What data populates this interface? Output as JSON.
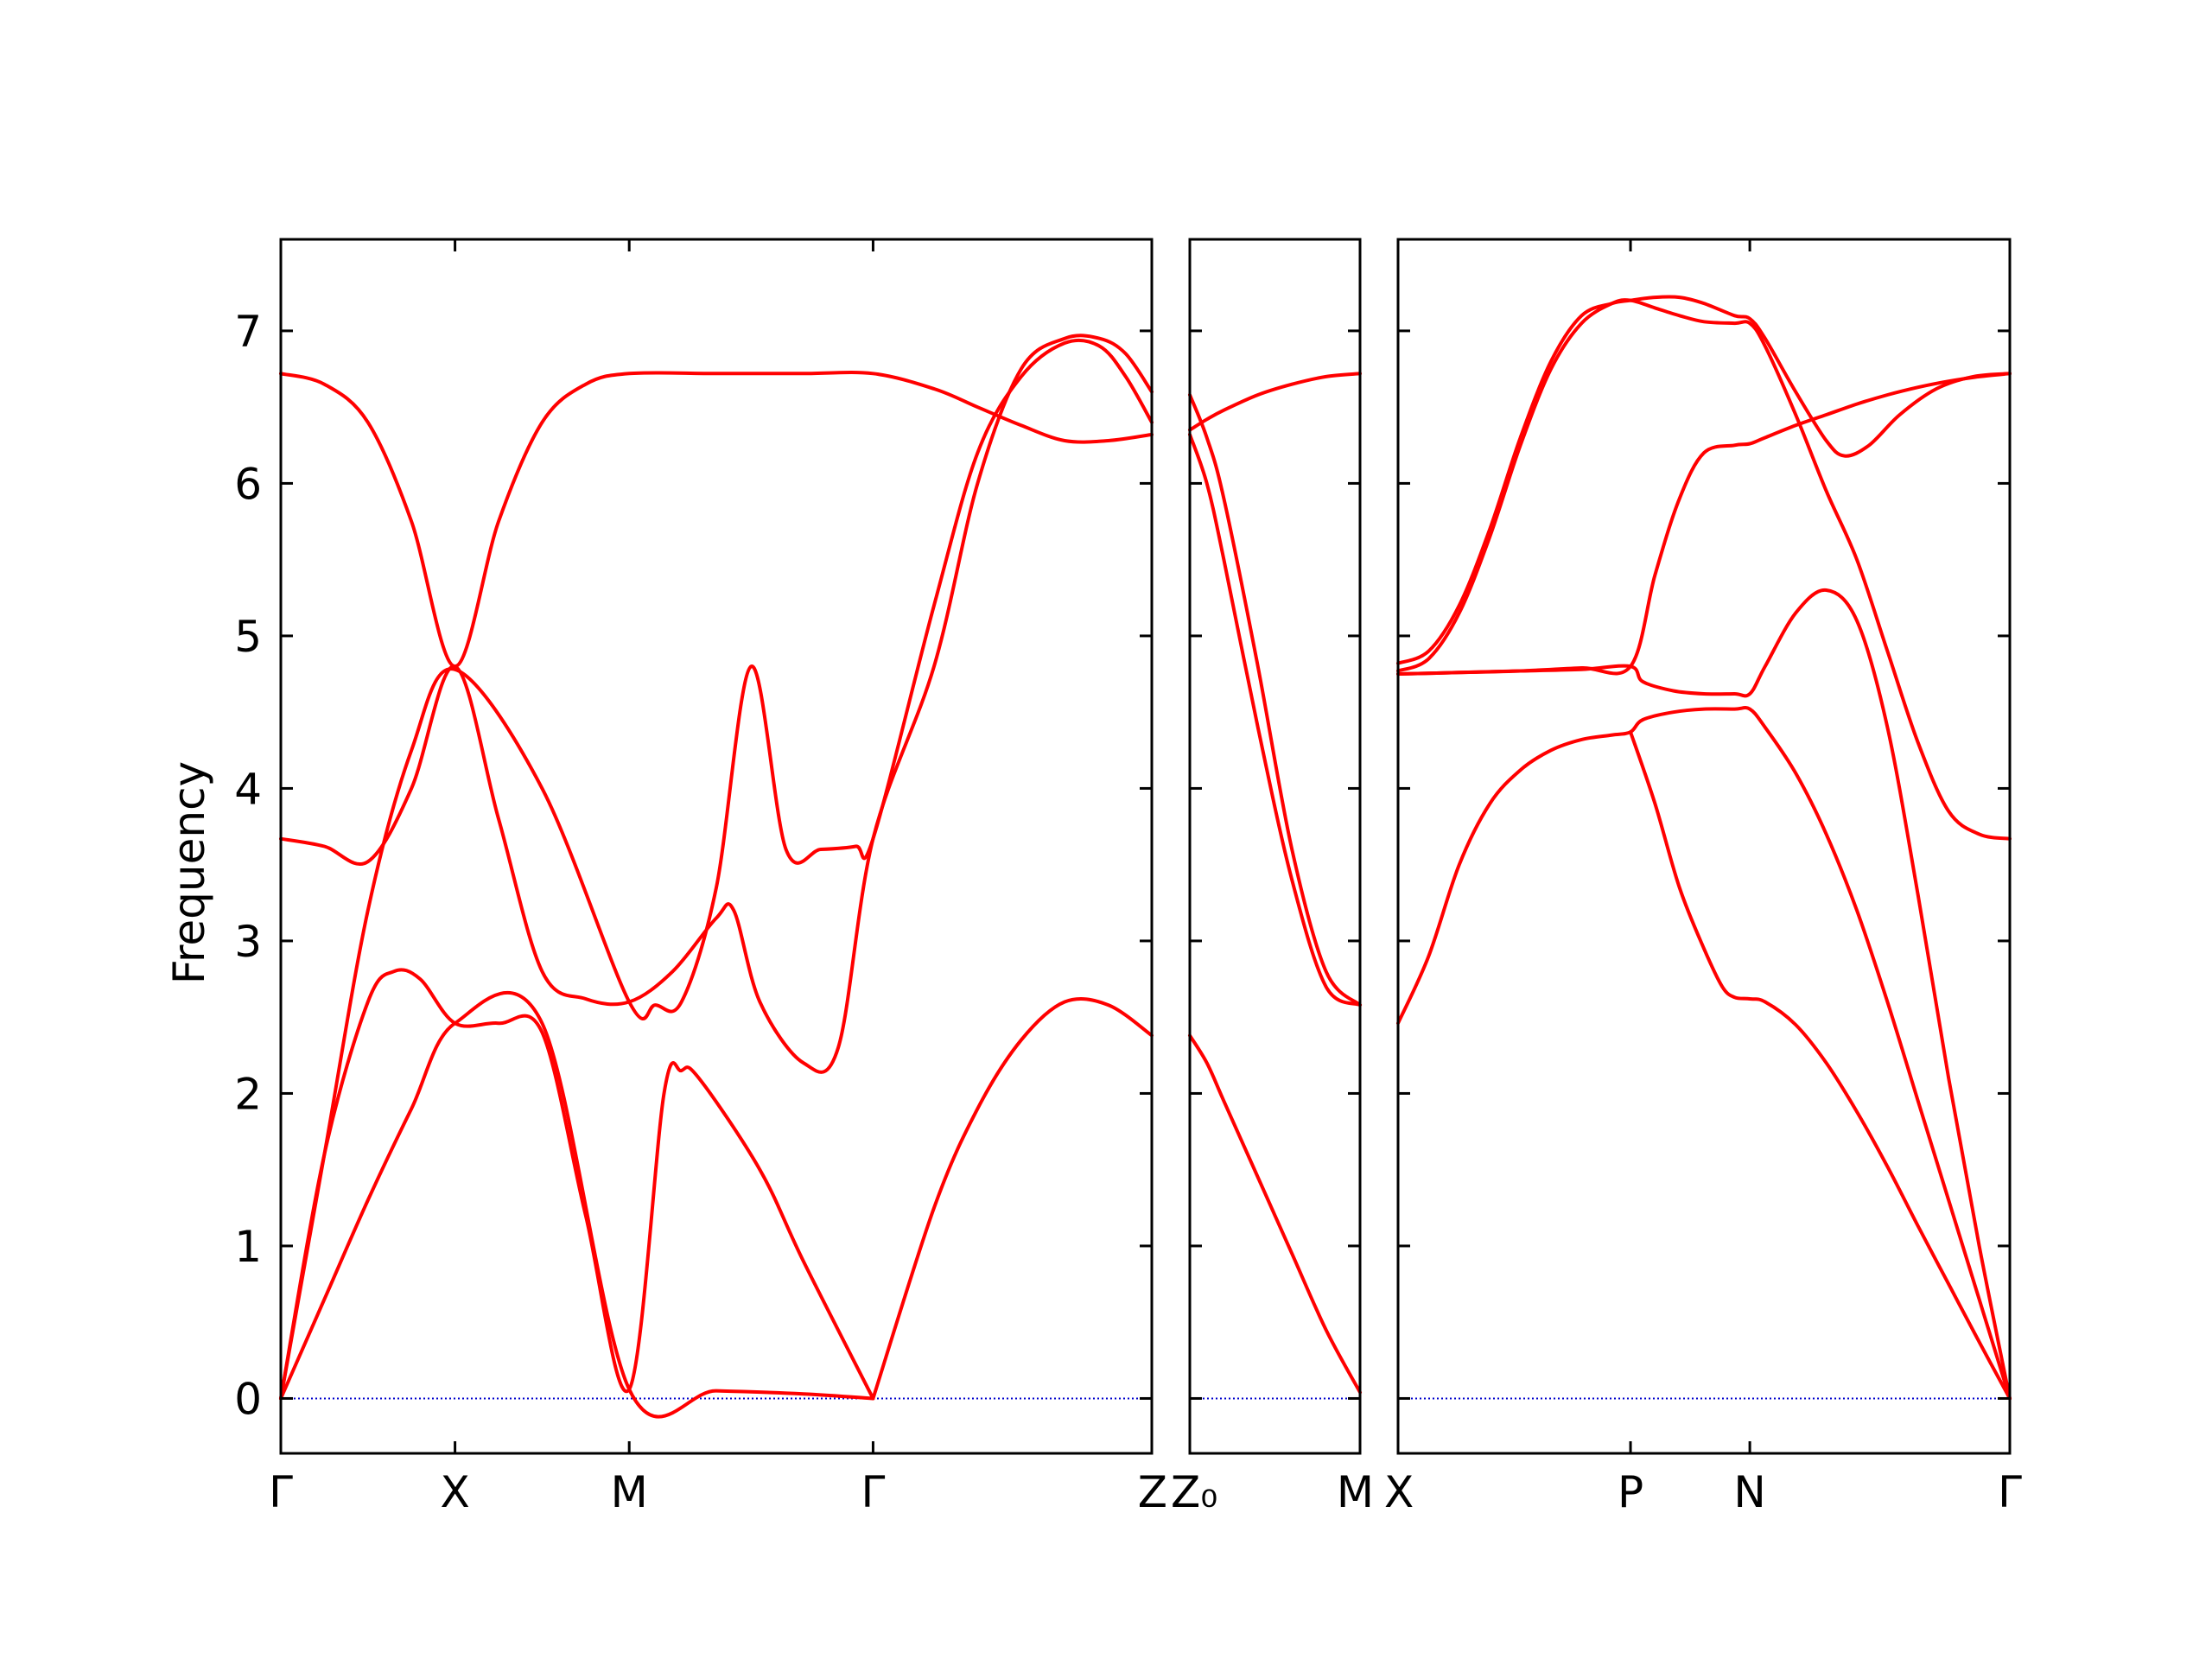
{
  "chart_data": {
    "type": "line",
    "title": "",
    "ylabel": "Frequency",
    "ylim": [
      -0.36,
      7.6
    ],
    "yticks": [
      0,
      1,
      2,
      3,
      4,
      5,
      6,
      7
    ],
    "ytick_labels": [
      "0",
      "1",
      "2",
      "3",
      "4",
      "5",
      "6",
      "7"
    ],
    "colors": {
      "bands": "#ff0000",
      "zero_line": "#0000cc",
      "axes": "#000000"
    },
    "panels": [
      {
        "id": "left",
        "xticks": [
          {
            "x": 0.0,
            "label": "Γ"
          },
          {
            "x": 0.2,
            "label": "X"
          },
          {
            "x": 0.4,
            "label": "M"
          },
          {
            "x": 0.68,
            "label": "Γ"
          },
          {
            "x": 1.0,
            "label": "Z"
          }
        ],
        "series": [
          {
            "x": [
              0,
              0.05,
              0.1,
              0.15,
              0.2,
              0.25,
              0.3,
              0.35,
              0.4,
              0.5,
              0.6,
              0.68,
              0.75,
              0.8,
              0.85,
              0.9,
              0.95,
              1.0
            ],
            "y": [
              6.72,
              6.65,
              6.4,
              5.75,
              4.8,
              5.75,
              6.4,
              6.65,
              6.72,
              6.72,
              6.72,
              6.72,
              6.62,
              6.5,
              6.38,
              6.28,
              6.28,
              6.32
            ]
          },
          {
            "x": [
              0,
              0.05,
              0.1,
              0.15,
              0.2,
              0.25,
              0.3,
              0.35,
              0.4,
              0.45,
              0.5,
              0.52,
              0.55,
              0.6,
              0.64,
              0.68,
              0.75,
              0.8,
              0.85,
              0.9,
              0.94,
              0.97,
              1.0
            ],
            "y": [
              3.67,
              3.62,
              3.52,
              4.0,
              4.8,
              3.8,
              2.8,
              2.62,
              2.6,
              2.8,
              3.15,
              3.2,
              2.6,
              2.2,
              2.3,
              3.67,
              4.8,
              6.0,
              6.75,
              6.95,
              6.95,
              6.85,
              6.6
            ]
          },
          {
            "x": [
              0,
              0.05,
              0.1,
              0.15,
              0.2,
              0.3,
              0.4,
              0.43,
              0.46,
              0.5,
              0.54,
              0.58,
              0.62,
              0.66,
              0.68,
              0.75,
              0.8,
              0.85,
              0.9,
              0.94,
              0.97,
              1.0
            ],
            "y": [
              0,
              1.6,
              3.2,
              4.25,
              4.78,
              4.0,
              2.6,
              2.58,
              2.6,
              3.35,
              4.8,
              3.6,
              3.6,
              3.62,
              3.67,
              5.2,
              6.2,
              6.7,
              6.92,
              6.9,
              6.7,
              6.4
            ]
          },
          {
            "x": [
              0,
              0.05,
              0.1,
              0.13,
              0.16,
              0.2,
              0.25,
              0.3,
              0.35,
              0.4,
              0.44,
              0.46,
              0.48,
              0.55,
              0.6,
              0.68
            ],
            "y": [
              0,
              1.6,
              2.6,
              2.8,
              2.75,
              2.46,
              2.46,
              2.4,
              1.2,
              0.06,
              2.0,
              2.15,
              2.1,
              1.5,
              0.9,
              0.0
            ]
          },
          {
            "x": [
              0,
              0.05,
              0.1,
              0.15,
              0.2,
              0.3,
              0.4,
              0.5,
              0.6,
              0.68
            ],
            "y": [
              0,
              0.65,
              1.3,
              1.9,
              2.46,
              2.46,
              0.06,
              0.05,
              0.03,
              0.0
            ]
          },
          {
            "x": [
              0.68,
              0.75,
              0.8,
              0.85,
              0.9,
              0.95,
              1.0
            ],
            "y": [
              0,
              1.25,
              1.9,
              2.35,
              2.6,
              2.58,
              2.38
            ]
          }
        ]
      },
      {
        "id": "middle",
        "xticks": [
          {
            "x": 0.0,
            "label": "Z₀"
          },
          {
            "x": 1.0,
            "label": "M"
          }
        ],
        "series": [
          {
            "x": [
              0,
              0.1,
              0.2,
              0.4,
              0.6,
              0.8,
              1.0
            ],
            "y": [
              6.35,
              6.42,
              6.48,
              6.58,
              6.65,
              6.7,
              6.72
            ]
          },
          {
            "x": [
              0,
              0.1,
              0.2,
              0.4,
              0.6,
              0.8,
              1.0
            ],
            "y": [
              6.58,
              6.3,
              5.9,
              4.8,
              3.6,
              2.8,
              2.58
            ]
          },
          {
            "x": [
              0,
              0.1,
              0.2,
              0.4,
              0.6,
              0.8,
              1.0
            ],
            "y": [
              6.32,
              6.0,
              5.5,
              4.4,
              3.4,
              2.7,
              2.58
            ]
          },
          {
            "x": [
              0,
              0.1,
              0.2,
              0.4,
              0.6,
              0.8,
              1.0
            ],
            "y": [
              2.38,
              2.2,
              1.95,
              1.45,
              0.95,
              0.45,
              0.04
            ]
          }
        ]
      },
      {
        "id": "right",
        "xticks": [
          {
            "x": 0.0,
            "label": "X"
          },
          {
            "x": 0.38,
            "label": "P"
          },
          {
            "x": 0.575,
            "label": "N"
          },
          {
            "x": 1.0,
            "label": "Γ"
          }
        ],
        "series": [
          {
            "x": [
              0,
              0.05,
              0.1,
              0.15,
              0.2,
              0.25,
              0.3,
              0.35,
              0.38,
              0.42,
              0.46,
              0.5,
              0.55,
              0.575,
              0.6,
              0.65,
              0.7,
              0.73,
              0.77,
              0.82,
              0.88,
              0.94,
              1.0
            ],
            "y": [
              4.82,
              4.9,
              5.2,
              5.7,
              6.3,
              6.8,
              7.1,
              7.18,
              7.2,
              7.22,
              7.22,
              7.18,
              7.1,
              7.08,
              6.95,
              6.6,
              6.28,
              6.18,
              6.25,
              6.45,
              6.62,
              6.7,
              6.72
            ]
          },
          {
            "x": [
              0,
              0.05,
              0.1,
              0.15,
              0.2,
              0.25,
              0.3,
              0.35,
              0.38,
              0.42,
              0.46,
              0.5,
              0.55,
              0.575,
              0.6,
              0.65,
              0.7,
              0.75,
              0.8,
              0.85,
              0.9,
              0.95,
              1.0
            ],
            "y": [
              4.77,
              4.85,
              5.15,
              5.65,
              6.25,
              6.75,
              7.05,
              7.18,
              7.2,
              7.15,
              7.1,
              7.06,
              7.05,
              7.05,
              6.9,
              6.45,
              5.95,
              5.5,
              4.9,
              4.3,
              3.85,
              3.7,
              3.67
            ]
          },
          {
            "x": [
              0,
              0.1,
              0.2,
              0.3,
              0.38,
              0.42,
              0.46,
              0.5,
              0.55,
              0.575,
              0.6,
              0.65,
              0.7,
              0.75,
              0.8,
              0.85,
              0.9,
              0.95,
              1.0
            ],
            "y": [
              4.75,
              4.76,
              4.77,
              4.79,
              4.8,
              5.4,
              5.9,
              6.2,
              6.25,
              6.26,
              6.3,
              6.38,
              6.45,
              6.52,
              6.58,
              6.63,
              6.67,
              6.7,
              6.72
            ]
          },
          {
            "x": [
              0,
              0.1,
              0.2,
              0.3,
              0.38,
              0.4,
              0.45,
              0.5,
              0.55,
              0.575,
              0.6,
              0.65,
              0.7,
              0.75,
              0.8,
              0.85,
              0.9,
              0.95,
              1.0
            ],
            "y": [
              4.75,
              4.76,
              4.77,
              4.78,
              4.8,
              4.7,
              4.64,
              4.62,
              4.62,
              4.62,
              4.8,
              5.15,
              5.3,
              5.1,
              4.4,
              3.3,
              2.1,
              1.0,
              0.0
            ]
          },
          {
            "x": [
              0,
              0.05,
              0.1,
              0.15,
              0.2,
              0.25,
              0.3,
              0.35,
              0.38,
              0.4,
              0.45,
              0.5,
              0.55,
              0.575,
              0.6,
              0.65,
              0.7,
              0.75,
              0.8,
              0.85,
              0.9,
              0.95,
              1.0
            ],
            "y": [
              2.46,
              2.9,
              3.5,
              3.9,
              4.12,
              4.25,
              4.32,
              4.35,
              4.37,
              4.45,
              4.5,
              4.52,
              4.52,
              4.52,
              4.4,
              4.1,
              3.7,
              3.2,
              2.6,
              1.95,
              1.3,
              0.65,
              0.0
            ]
          },
          {
            "x": [
              0.38,
              0.42,
              0.46,
              0.5,
              0.53,
              0.55,
              0.575,
              0.6,
              0.65,
              0.7,
              0.75,
              0.8,
              0.85,
              0.9,
              0.95,
              1.0
            ],
            "y": [
              4.37,
              3.9,
              3.35,
              2.95,
              2.7,
              2.63,
              2.62,
              2.6,
              2.45,
              2.2,
              1.88,
              1.52,
              1.13,
              0.75,
              0.37,
              0.0
            ]
          }
        ]
      }
    ]
  }
}
